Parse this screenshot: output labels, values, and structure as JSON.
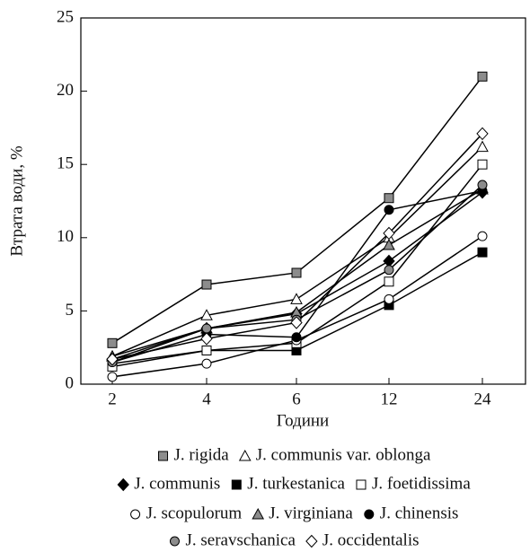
{
  "chart_data": {
    "type": "line",
    "xlabel": "Години",
    "ylabel": "Втрата води, %",
    "categories": [
      "2",
      "4",
      "6",
      "12",
      "24"
    ],
    "ylim": [
      0,
      25
    ],
    "yticks": [
      0,
      5,
      10,
      15,
      20,
      25
    ],
    "line_color": "#000",
    "series": [
      {
        "name": "J. rigida",
        "marker": "square",
        "color": "#8c8c8c",
        "values": [
          2.8,
          6.8,
          7.6,
          12.7,
          21.0
        ]
      },
      {
        "name": "J. communis var. oblonga",
        "marker": "triangle",
        "color": "#ffffff",
        "values": [
          1.9,
          4.7,
          5.8,
          10.0,
          16.2
        ]
      },
      {
        "name": "J. communis",
        "marker": "diamond",
        "color": "#000000",
        "values": [
          1.7,
          3.8,
          4.8,
          8.4,
          13.1
        ]
      },
      {
        "name": "J. turkestanica",
        "marker": "square",
        "color": "#000000",
        "values": [
          1.4,
          2.3,
          2.3,
          5.4,
          9.0
        ]
      },
      {
        "name": "J. foetidissima",
        "marker": "square",
        "color": "#ffffff",
        "values": [
          1.2,
          2.3,
          2.8,
          7.0,
          15.0
        ]
      },
      {
        "name": "J. scopulorum",
        "marker": "circle",
        "color": "#ffffff",
        "values": [
          0.5,
          1.4,
          3.0,
          5.8,
          10.1
        ]
      },
      {
        "name": "J. virginiana",
        "marker": "triangle",
        "color": "#8c8c8c",
        "values": [
          1.9,
          3.8,
          4.9,
          9.5,
          13.3
        ]
      },
      {
        "name": "J. chinensis",
        "marker": "circle",
        "color": "#000000",
        "values": [
          1.5,
          3.4,
          3.2,
          11.9,
          13.2
        ]
      },
      {
        "name": "J. seravschanica",
        "marker": "circle",
        "color": "#8c8c8c",
        "values": [
          1.5,
          3.8,
          4.4,
          7.8,
          13.6
        ]
      },
      {
        "name": "J. occidentalis",
        "marker": "diamond",
        "color": "#ffffff",
        "values": [
          1.7,
          3.1,
          4.2,
          10.3,
          17.1
        ]
      }
    ]
  }
}
